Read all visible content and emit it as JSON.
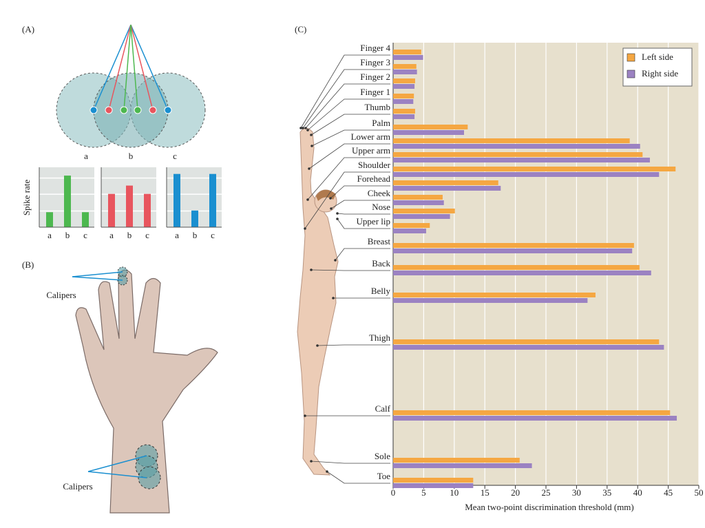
{
  "panel_labels": [
    "(A)",
    "(B)",
    "(C)"
  ],
  "receptive_field_labels": [
    "a",
    "b",
    "c"
  ],
  "caliper_labels": [
    "Calipers",
    "Calipers"
  ],
  "chart_data": [
    {
      "type": "bar",
      "ylabel": "Spike rate",
      "categories": [
        "a",
        "b",
        "c"
      ],
      "values": [
        0.9,
        3.1,
        0.9
      ],
      "color": "#4db84f",
      "ylim": [
        0,
        3.6
      ]
    },
    {
      "type": "bar",
      "categories": [
        "a",
        "b",
        "c"
      ],
      "values": [
        2.0,
        2.5,
        2.0
      ],
      "color": "#e8555e",
      "ylim": [
        0,
        3.6
      ]
    },
    {
      "type": "bar",
      "categories": [
        "a",
        "b",
        "c"
      ],
      "values": [
        3.2,
        1.0,
        3.2
      ],
      "color": "#1a8fd0",
      "ylim": [
        0,
        3.6
      ]
    },
    {
      "type": "barh",
      "xlabel": "Mean two-point discrimination threshold (mm)",
      "categories": [
        "Finger 4",
        "Finger 3",
        "Finger 2",
        "Finger 1",
        "Thumb",
        "Palm",
        "Lower arm",
        "Upper arm",
        "Shoulder",
        "Forehead",
        "Cheek",
        "Nose",
        "Upper lip",
        "Breast",
        "Back",
        "Belly",
        "Thigh",
        "Calf",
        "Sole",
        "Toe"
      ],
      "series": [
        {
          "name": "Left side",
          "color": "#f5a742",
          "values": [
            4.6,
            3.8,
            3.6,
            3.4,
            3.6,
            12.2,
            38.7,
            40.8,
            46.2,
            17.2,
            8.1,
            10.1,
            6.0,
            39.4,
            40.3,
            33.1,
            43.5,
            45.3,
            20.7,
            13.1
          ]
        },
        {
          "name": "Right side",
          "color": "#9b82c2",
          "values": [
            4.9,
            3.9,
            3.5,
            3.3,
            3.5,
            11.6,
            40.4,
            42.0,
            43.5,
            17.6,
            8.3,
            9.3,
            5.4,
            39.1,
            42.2,
            31.8,
            44.3,
            46.4,
            22.7,
            13.1
          ]
        }
      ],
      "xlim": [
        0,
        50
      ],
      "xticks": [
        0,
        5,
        10,
        15,
        20,
        25,
        30,
        35,
        40,
        45,
        50
      ],
      "grid": true,
      "legend": "upper right"
    }
  ]
}
